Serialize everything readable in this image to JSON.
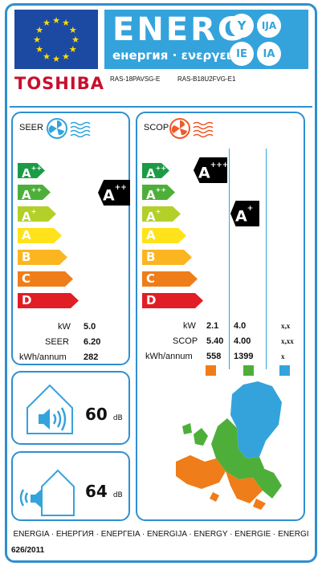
{
  "header": {
    "energy_word": "ENERG",
    "energy_sub": "енергия · ενεργεια",
    "suffixes": [
      "Y",
      "IJA",
      "IE",
      "IA"
    ],
    "brand": "TOSHIBA",
    "model_indoor": "RAS-18PAVSG-E",
    "model_outdoor": "RAS-B18U2FVG-E1"
  },
  "classes": {
    "labels": [
      "A",
      "A",
      "A",
      "A",
      "B",
      "C",
      "D"
    ],
    "plus": [
      "+++",
      "++",
      "+",
      "",
      "",
      "",
      ""
    ],
    "colors": [
      "#1b9b45",
      "#4daf3a",
      "#b3cf2a",
      "#ffe21a",
      "#fbb520",
      "#ef7d19",
      "#e11d25"
    ]
  },
  "cooling": {
    "title": "SEER",
    "rating_letter": "A",
    "rating_plus": "++",
    "rows": [
      {
        "label": "kW",
        "value": "5.0"
      },
      {
        "label": "SEER",
        "value": "6.20"
      },
      {
        "label": "kWh/annum",
        "value": "282"
      }
    ]
  },
  "heating": {
    "title": "SCOP",
    "ratings": [
      {
        "letter": "A",
        "plus": "+++"
      },
      {
        "letter": "A",
        "plus": "+"
      }
    ],
    "row_labels": [
      "kW",
      "SCOP",
      "kWh/annum"
    ],
    "col_warm": [
      "2.1",
      "5.40",
      "558"
    ],
    "col_average": [
      "4.0",
      "4.00",
      "1399"
    ],
    "col_cold": [
      "x,x",
      "x,xx",
      "x"
    ],
    "zone_colors": {
      "warm": "#ef7d19",
      "average": "#4daf3a",
      "cold": "#34a3dc"
    }
  },
  "noise": {
    "indoor_value": "60",
    "outdoor_value": "64",
    "unit": "dB"
  },
  "footer": {
    "energy_words": "ENERGIA · ЕНЕРГИЯ · ΕΝΕΡΓΕΙΑ · ENERGIJA · ENERGY · ENERGIE · ENERGI",
    "regulation": "626/2011"
  }
}
